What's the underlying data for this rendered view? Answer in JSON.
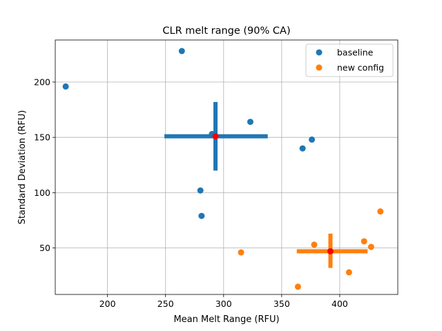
{
  "chart_data": {
    "type": "scatter",
    "title": "CLR melt range (90% CA)",
    "xlabel": "Mean Melt Range (RFU)",
    "ylabel": "Standard Deviation (RFU)",
    "xlim": [
      155,
      450
    ],
    "ylim": [
      8,
      238
    ],
    "xticks": [
      200,
      250,
      300,
      350,
      400
    ],
    "yticks": [
      50,
      100,
      150,
      200
    ],
    "grid": true,
    "legend": {
      "position": "top-right"
    },
    "series": [
      {
        "name": "baseline",
        "color": "#1f77b4",
        "points": [
          {
            "x": 164,
            "y": 196
          },
          {
            "x": 264,
            "y": 228
          },
          {
            "x": 290,
            "y": 153
          },
          {
            "x": 323,
            "y": 164
          },
          {
            "x": 368,
            "y": 140
          },
          {
            "x": 376,
            "y": 148
          },
          {
            "x": 280,
            "y": 102
          },
          {
            "x": 281,
            "y": 79
          }
        ],
        "summary": {
          "mean": {
            "x": 293,
            "y": 151
          },
          "x_interval": [
            249,
            338
          ],
          "y_interval": [
            120,
            182
          ]
        }
      },
      {
        "name": "new config",
        "color": "#ff7f0e",
        "points": [
          {
            "x": 315,
            "y": 46
          },
          {
            "x": 364,
            "y": 15
          },
          {
            "x": 378,
            "y": 53
          },
          {
            "x": 408,
            "y": 28
          },
          {
            "x": 421,
            "y": 56
          },
          {
            "x": 427,
            "y": 51
          },
          {
            "x": 435,
            "y": 83
          }
        ],
        "summary": {
          "mean": {
            "x": 392,
            "y": 47
          },
          "x_interval": [
            363,
            424
          ],
          "y_interval": [
            32,
            63
          ]
        }
      }
    ],
    "mean_marker_color": "#ff0000"
  }
}
